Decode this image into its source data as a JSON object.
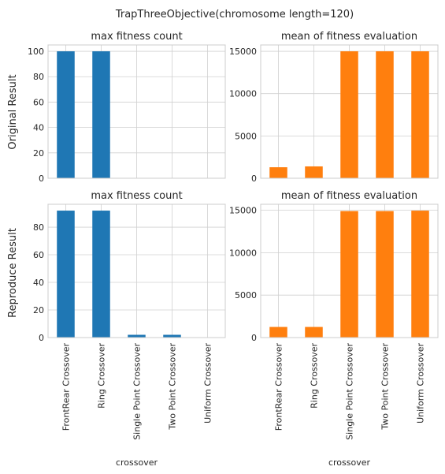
{
  "suptitle": "TrapThreeObjective(chromosome length=120)",
  "row_labels": [
    "Original Result",
    "Reproduce Result"
  ],
  "colors": {
    "blue": "#1f77b4",
    "orange": "#ff7f0e"
  },
  "chart_data": [
    {
      "type": "bar",
      "title": "max fitness count",
      "ylabel": "Original Result",
      "xlabel": "",
      "categories": [
        "FrontRear Crossover",
        "Ring Crossover",
        "Single Point Crossover",
        "Two Point Crossover",
        "Uniform Crossover"
      ],
      "values": [
        100,
        100,
        0,
        0,
        0
      ],
      "ylim": [
        0,
        105
      ],
      "yticks": [
        "0",
        "20",
        "40",
        "60",
        "80",
        "100"
      ],
      "color": "#1f77b4",
      "grid": true
    },
    {
      "type": "bar",
      "title": "mean of fitness evaluation",
      "xlabel": "",
      "categories": [
        "FrontRear Crossover",
        "Ring Crossover",
        "Single Point Crossover",
        "Two Point Crossover",
        "Uniform Crossover"
      ],
      "values": [
        1300,
        1400,
        15000,
        15000,
        15000
      ],
      "ylim": [
        0,
        15750
      ],
      "yticks": [
        "0",
        "5000",
        "10000",
        "15000"
      ],
      "color": "#ff7f0e",
      "grid": true
    },
    {
      "type": "bar",
      "title": "max fitness count",
      "ylabel": "Reproduce Result",
      "xlabel": "crossover",
      "categories": [
        "FrontRear Crossover",
        "Ring Crossover",
        "Single Point Crossover",
        "Two Point Crossover",
        "Uniform Crossover"
      ],
      "values": [
        92,
        92,
        2,
        2,
        0
      ],
      "ylim": [
        0,
        96.6
      ],
      "yticks": [
        "0",
        "20",
        "40",
        "60",
        "80"
      ],
      "color": "#1f77b4",
      "grid": true
    },
    {
      "type": "bar",
      "title": "mean of fitness evaluation",
      "xlabel": "crossover",
      "categories": [
        "FrontRear Crossover",
        "Ring Crossover",
        "Single Point Crossover",
        "Two Point Crossover",
        "Uniform Crossover"
      ],
      "values": [
        1250,
        1250,
        14900,
        14900,
        14950
      ],
      "ylim": [
        0,
        15700
      ],
      "yticks": [
        "0",
        "5000",
        "10000",
        "15000"
      ],
      "color": "#ff7f0e",
      "grid": true
    }
  ]
}
